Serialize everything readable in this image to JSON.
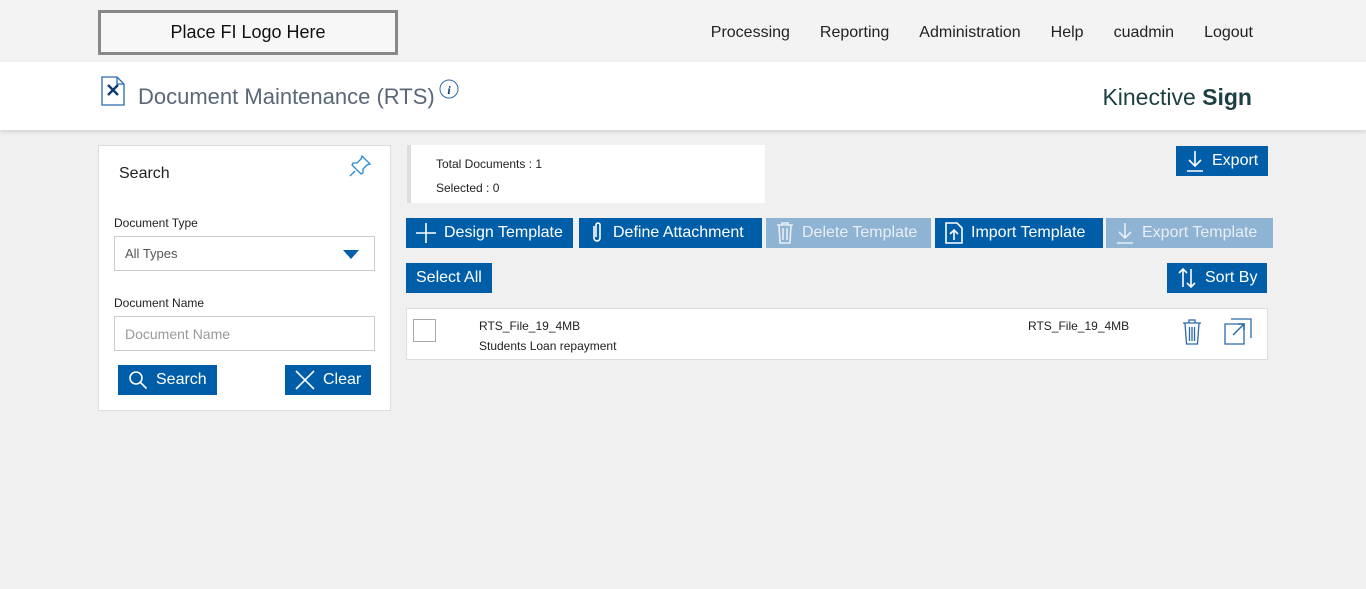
{
  "header": {
    "logo": "Place FI Logo Here",
    "nav": [
      "Processing",
      "Reporting",
      "Administration",
      "Help",
      "cuadmin",
      "Logout"
    ]
  },
  "page": {
    "title": "Document Maintenance (RTS)",
    "brand_light": "Kinective ",
    "brand_bold": "Sign"
  },
  "search": {
    "title": "Search",
    "doc_type_label": "Document Type",
    "doc_type_value": "All Types",
    "doc_name_label": "Document Name",
    "doc_name_placeholder": "Document Name",
    "search_button": "Search",
    "clear_button": "Clear"
  },
  "summary": {
    "total": "Total Documents : 1",
    "selected": "Selected : 0"
  },
  "toolbar": {
    "export": "Export",
    "design": "Design Template",
    "define": "Define Attachment",
    "delete": "Delete Template",
    "import": "Import Template",
    "export_template": "Export Template",
    "select_all": "Select All",
    "sort_by": "Sort By"
  },
  "documents": [
    {
      "name": "RTS_File_19_4MB",
      "description": "Students Loan repayment",
      "file": "RTS_File_19_4MB"
    }
  ],
  "colors": {
    "primary": "#005ea8",
    "disabled": "#8fb3d3"
  }
}
